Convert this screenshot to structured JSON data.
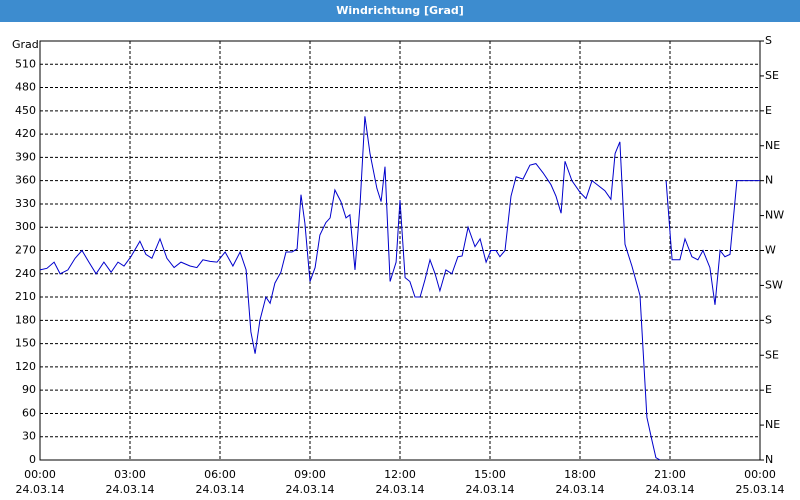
{
  "chart_data": {
    "type": "line",
    "title": "Windrichtung [Grad]",
    "y_label": "Grad",
    "x": [
      0,
      0.23,
      0.47,
      0.67,
      0.93,
      1.17,
      1.4,
      1.63,
      1.87,
      2.13,
      2.37,
      2.6,
      2.8,
      3.03,
      3.33,
      3.53,
      3.73,
      4,
      4.23,
      4.47,
      4.7,
      5,
      5.23,
      5.43,
      5.67,
      5.9,
      6.17,
      6.43,
      6.67,
      6.87,
      7.03,
      7.17,
      7.33,
      7.53,
      7.67,
      7.83,
      8.03,
      8.2,
      8.4,
      8.57,
      8.7,
      8.83,
      9,
      9.17,
      9.33,
      9.53,
      9.67,
      9.83,
      10.03,
      10.2,
      10.33,
      10.5,
      10.67,
      10.83,
      11,
      11.23,
      11.37,
      11.5,
      11.67,
      11.87,
      12,
      12.17,
      12.33,
      12.5,
      12.67,
      12.83,
      13,
      13.17,
      13.33,
      13.53,
      13.73,
      13.93,
      14.07,
      14.27,
      14.5,
      14.67,
      14.87,
      15.03,
      15.2,
      15.33,
      15.5,
      15.7,
      15.87,
      16.1,
      16.33,
      16.53,
      16.77,
      17.03,
      17.2,
      17.37,
      17.5,
      17.73,
      18,
      18.2,
      18.4,
      18.83,
      19.03,
      19.17,
      19.33,
      19.5,
      19.73,
      20,
      20.23,
      20.4,
      20.53,
      20.67,
      20.77,
      20.87,
      21.07,
      21.33,
      21.5,
      21.73,
      21.93,
      22.1,
      22.33,
      22.5,
      22.67,
      22.83,
      23,
      23.23,
      24
    ],
    "series": [
      {
        "name": "Windrichtung",
        "color": "#0000cc",
        "values": [
          245,
          247,
          255,
          240,
          245,
          260,
          270,
          255,
          240,
          255,
          242,
          255,
          250,
          262,
          282,
          265,
          260,
          285,
          260,
          248,
          255,
          250,
          248,
          258,
          256,
          255,
          268,
          250,
          268,
          245,
          165,
          137,
          180,
          210,
          202,
          228,
          242,
          268,
          268,
          272,
          342,
          305,
          230,
          248,
          290,
          306,
          312,
          348,
          333,
          312,
          316,
          245,
          330,
          443,
          395,
          350,
          333,
          378,
          230,
          255,
          335,
          235,
          230,
          210,
          210,
          232,
          258,
          240,
          218,
          245,
          240,
          262,
          263,
          300,
          275,
          285,
          255,
          270,
          270,
          262,
          270,
          340,
          365,
          362,
          380,
          382,
          370,
          355,
          340,
          318,
          385,
          360,
          345,
          337,
          360,
          347,
          336,
          395,
          410,
          278,
          250,
          212,
          55,
          25,
          3,
          0,
          null,
          360,
          258,
          258,
          285,
          262,
          258,
          270,
          248,
          200,
          270,
          262,
          265,
          360,
          360
        ]
      }
    ],
    "xlim": [
      0,
      24
    ],
    "xticks": [
      {
        "value": 0,
        "label": "00:00",
        "date": "24.03.14"
      },
      {
        "value": 3,
        "label": "03:00",
        "date": "24.03.14"
      },
      {
        "value": 6,
        "label": "06:00",
        "date": "24.03.14"
      },
      {
        "value": 9,
        "label": "09:00",
        "date": "24.03.14"
      },
      {
        "value": 12,
        "label": "12:00",
        "date": "24.03.14"
      },
      {
        "value": 15,
        "label": "15:00",
        "date": "24.03.14"
      },
      {
        "value": 18,
        "label": "18:00",
        "date": "24.03.14"
      },
      {
        "value": 21,
        "label": "21:00",
        "date": "24.03.14"
      },
      {
        "value": 24,
        "label": "00:00",
        "date": "25.03.14"
      }
    ],
    "ylim": [
      0,
      540
    ],
    "yticks": [
      0,
      30,
      60,
      90,
      120,
      150,
      180,
      210,
      240,
      270,
      300,
      330,
      360,
      390,
      420,
      450,
      480,
      510
    ],
    "y2lim": [
      0,
      540
    ],
    "y2ticks": [
      {
        "value": 0,
        "label": "N"
      },
      {
        "value": 45,
        "label": "NE"
      },
      {
        "value": 90,
        "label": "E"
      },
      {
        "value": 135,
        "label": "SE"
      },
      {
        "value": 180,
        "label": "S"
      },
      {
        "value": 225,
        "label": "SW"
      },
      {
        "value": 270,
        "label": "W"
      },
      {
        "value": 315,
        "label": "NW"
      },
      {
        "value": 360,
        "label": "N"
      },
      {
        "value": 405,
        "label": "NE"
      },
      {
        "value": 450,
        "label": "E"
      },
      {
        "value": 495,
        "label": "SE"
      },
      {
        "value": 540,
        "label": "S"
      }
    ],
    "grid": true
  }
}
